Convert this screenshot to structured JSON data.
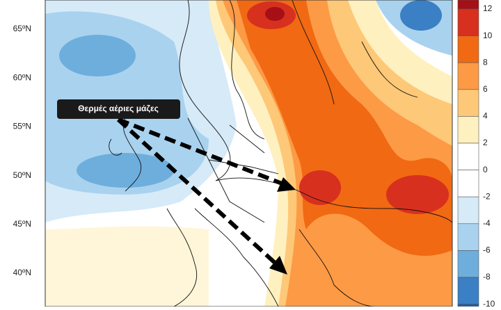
{
  "map": {
    "annotation": "Θερμές αέριες μάζες",
    "latitude_labels": [
      "65ºN",
      "60ºN",
      "55ºN",
      "50ºN",
      "45ºN",
      "40ºN"
    ],
    "colorbar": {
      "ticks": [
        12,
        10,
        8,
        6,
        4,
        2,
        0,
        -2,
        -4,
        -6,
        -8,
        -10
      ],
      "colors": [
        "#a50f15",
        "#d7301f",
        "#f16913",
        "#fd9a45",
        "#fdc877",
        "#fff0c0",
        "#ffffff",
        "#ffffff",
        "#d6eaf8",
        "#a9d2ef",
        "#6eaedc",
        "#3b7fc4",
        "#1f5ea8"
      ]
    }
  }
}
